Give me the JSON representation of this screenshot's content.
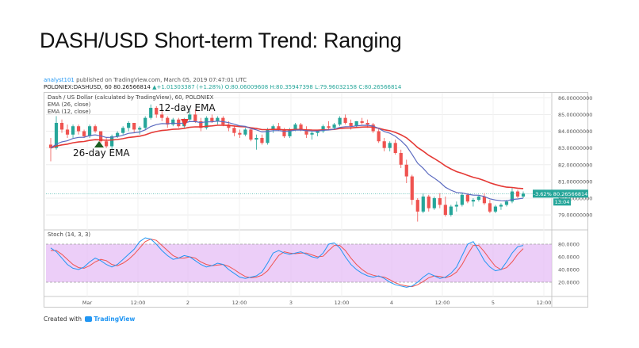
{
  "page": {
    "title": "DASH/USD Short-term Trend: Ranging"
  },
  "header": {
    "author": "analyst101",
    "published_text": "published on TradingView.com, March 05, 2019 07:47:01 UTC",
    "symbol_line_prefix": "POLONIEX:DASHUSD, 60",
    "last": "80.26566814",
    "change": "▲+1.01303387 (+1.28%)",
    "o": "O:80.06009608",
    "h": "H:80.35947398",
    "l": "L:79.96032158",
    "c": "C:80.26566814"
  },
  "annotations": {
    "ema12": "12-day EMA",
    "ema26": "26-day EMA"
  },
  "footer": {
    "created_with": "Created with",
    "brand": "TradingView"
  },
  "colors": {
    "up": "#26a69a",
    "down": "#ef5350",
    "ema26": "#e53935",
    "ema12": "#5c6bc0",
    "stoch_k": "#2196f3",
    "stoch_d": "#ef5350",
    "stoch_band": "#e6bdf5"
  },
  "chart_data": [
    {
      "type": "candlestick",
      "legend": [
        "Dash / US Dollar (calculated by TradingView), 60, POLONIEX",
        "EMA (26, close)",
        "EMA (12, close)"
      ],
      "y_ticks": [
        "80.00000000",
        "81.00000000",
        "82.00000000",
        "83.00000000",
        "84.00000000",
        "85.00000000",
        "86.00000000",
        "79.00000000"
      ],
      "y_tick_values": [
        80,
        81,
        82,
        83,
        84,
        85,
        86,
        79
      ],
      "ylim": [
        78.2,
        86.3
      ],
      "x_ticks": [
        "Mar",
        "12:00",
        "2",
        "12:00",
        "3",
        "12:00",
        "4",
        "12:00",
        "5",
        "12:00"
      ],
      "last_price_label": "80.26566814",
      "change_label": "-3.62%",
      "countdown_label": "13:04",
      "candles": [
        [
          83.2,
          83.6,
          82.2,
          83.0
        ],
        [
          83.0,
          84.9,
          82.9,
          84.5
        ],
        [
          84.5,
          84.7,
          83.9,
          84.1
        ],
        [
          84.1,
          84.4,
          83.6,
          83.8
        ],
        [
          83.8,
          84.4,
          83.6,
          84.3
        ],
        [
          84.3,
          84.4,
          83.8,
          84.0
        ],
        [
          84.0,
          84.1,
          83.6,
          83.7
        ],
        [
          83.7,
          84.4,
          83.6,
          84.3
        ],
        [
          84.3,
          84.4,
          83.9,
          84.0
        ],
        [
          84.0,
          84.0,
          83.3,
          83.4
        ],
        [
          83.4,
          83.6,
          83.0,
          83.1
        ],
        [
          83.1,
          83.8,
          82.9,
          83.7
        ],
        [
          83.7,
          84.0,
          83.6,
          83.9
        ],
        [
          83.9,
          84.3,
          83.8,
          84.2
        ],
        [
          84.2,
          84.6,
          84.0,
          84.5
        ],
        [
          84.5,
          84.5,
          83.9,
          84.1
        ],
        [
          84.1,
          84.3,
          83.8,
          84.2
        ],
        [
          84.2,
          84.9,
          84.1,
          84.8
        ],
        [
          84.8,
          85.6,
          84.7,
          85.4
        ],
        [
          85.4,
          85.5,
          84.8,
          85.0
        ],
        [
          85.0,
          85.2,
          84.6,
          84.8
        ],
        [
          84.8,
          84.9,
          84.2,
          84.4
        ],
        [
          84.4,
          84.8,
          84.3,
          84.7
        ],
        [
          84.7,
          84.8,
          84.2,
          84.3
        ],
        [
          84.3,
          84.8,
          84.2,
          84.7
        ],
        [
          84.7,
          85.2,
          84.6,
          85.0
        ],
        [
          85.0,
          85.3,
          84.5,
          84.6
        ],
        [
          84.6,
          84.8,
          84.0,
          84.2
        ],
        [
          84.2,
          84.9,
          84.1,
          84.8
        ],
        [
          84.8,
          85.0,
          84.5,
          84.6
        ],
        [
          84.6,
          84.9,
          84.4,
          84.8
        ],
        [
          84.8,
          84.9,
          84.3,
          84.4
        ],
        [
          84.4,
          84.6,
          84.0,
          84.2
        ],
        [
          84.2,
          84.3,
          83.7,
          83.9
        ],
        [
          83.9,
          84.1,
          83.6,
          83.8
        ],
        [
          83.8,
          84.2,
          83.7,
          84.1
        ],
        [
          84.1,
          84.2,
          83.4,
          83.5
        ],
        [
          83.5,
          83.8,
          82.9,
          83.6
        ],
        [
          83.6,
          83.8,
          83.2,
          83.3
        ],
        [
          83.3,
          84.2,
          83.2,
          84.1
        ],
        [
          84.1,
          84.4,
          83.9,
          84.3
        ],
        [
          84.3,
          84.5,
          84.0,
          84.1
        ],
        [
          84.1,
          84.2,
          83.6,
          83.7
        ],
        [
          83.7,
          84.2,
          83.6,
          84.1
        ],
        [
          84.1,
          84.5,
          84.0,
          84.4
        ],
        [
          84.4,
          84.5,
          84.0,
          84.1
        ],
        [
          84.1,
          84.3,
          83.6,
          83.8
        ],
        [
          83.8,
          84.0,
          83.5,
          83.9
        ],
        [
          83.9,
          84.1,
          83.7,
          84.0
        ],
        [
          84.0,
          84.4,
          83.9,
          84.3
        ],
        [
          84.3,
          84.6,
          84.1,
          84.2
        ],
        [
          84.2,
          84.5,
          84.1,
          84.4
        ],
        [
          84.4,
          84.9,
          84.3,
          84.8
        ],
        [
          84.8,
          85.0,
          84.4,
          84.5
        ],
        [
          84.5,
          84.7,
          84.1,
          84.3
        ],
        [
          84.3,
          84.6,
          84.2,
          84.6
        ],
        [
          84.6,
          84.8,
          84.4,
          84.5
        ],
        [
          84.5,
          84.7,
          84.2,
          84.4
        ],
        [
          84.4,
          84.5,
          83.9,
          84.0
        ],
        [
          84.0,
          84.2,
          83.3,
          83.4
        ],
        [
          83.4,
          83.6,
          82.8,
          83.0
        ],
        [
          83.0,
          83.4,
          82.8,
          83.3
        ],
        [
          83.3,
          83.5,
          82.6,
          82.7
        ],
        [
          82.7,
          82.9,
          81.8,
          82.0
        ],
        [
          82.0,
          82.3,
          80.9,
          81.3
        ],
        [
          81.3,
          81.4,
          79.6,
          79.9
        ],
        [
          79.9,
          80.0,
          78.6,
          79.2
        ],
        [
          79.2,
          80.3,
          79.1,
          80.1
        ],
        [
          80.1,
          80.2,
          79.2,
          79.4
        ],
        [
          79.4,
          80.1,
          79.3,
          80.0
        ],
        [
          80.0,
          80.3,
          79.4,
          79.6
        ],
        [
          79.6,
          80.1,
          78.9,
          79.0
        ],
        [
          79.0,
          79.6,
          78.9,
          79.5
        ],
        [
          79.5,
          79.8,
          79.2,
          79.6
        ],
        [
          79.6,
          80.3,
          79.5,
          80.2
        ],
        [
          80.2,
          80.3,
          79.7,
          79.8
        ],
        [
          79.8,
          80.0,
          79.5,
          79.9
        ],
        [
          79.9,
          80.2,
          79.8,
          80.1
        ],
        [
          80.1,
          80.3,
          79.6,
          79.7
        ],
        [
          79.7,
          79.9,
          79.1,
          79.2
        ],
        [
          79.2,
          79.6,
          79.1,
          79.5
        ],
        [
          79.5,
          79.7,
          79.3,
          79.6
        ],
        [
          79.6,
          79.9,
          79.5,
          79.8
        ],
        [
          79.8,
          80.6,
          79.7,
          80.4
        ],
        [
          80.4,
          80.5,
          80.0,
          80.1
        ],
        [
          80.1,
          80.4,
          80.0,
          80.27
        ]
      ],
      "stochastic": {
        "label": "Stoch (14, 3, 3)",
        "y_ticks": [
          "80.0000",
          "60.0000",
          "40.0000",
          "20.0000"
        ],
        "y_tick_values": [
          80,
          60,
          40,
          20
        ],
        "ylim": [
          0,
          100
        ],
        "band": [
          20,
          80
        ],
        "k": [
          74,
          68,
          58,
          48,
          42,
          40,
          44,
          52,
          58,
          54,
          48,
          44,
          48,
          56,
          64,
          72,
          84,
          90,
          88,
          80,
          70,
          62,
          56,
          58,
          62,
          60,
          54,
          48,
          44,
          46,
          50,
          48,
          40,
          34,
          28,
          26,
          28,
          30,
          36,
          50,
          66,
          70,
          66,
          64,
          66,
          68,
          64,
          60,
          58,
          66,
          80,
          82,
          74,
          60,
          48,
          40,
          34,
          30,
          28,
          30,
          26,
          20,
          16,
          14,
          12,
          14,
          20,
          28,
          34,
          30,
          26,
          28,
          34,
          44,
          62,
          80,
          84,
          70,
          54,
          44,
          38,
          40,
          52,
          66,
          76,
          78
        ],
        "d": [
          70,
          70,
          64,
          56,
          48,
          43,
          42,
          46,
          52,
          56,
          54,
          48,
          46,
          50,
          56,
          64,
          74,
          84,
          88,
          86,
          78,
          70,
          62,
          58,
          58,
          60,
          58,
          52,
          48,
          46,
          47,
          48,
          45,
          40,
          34,
          29,
          27,
          28,
          31,
          38,
          50,
          62,
          68,
          66,
          65,
          66,
          66,
          63,
          60,
          61,
          70,
          78,
          78,
          70,
          58,
          48,
          40,
          34,
          31,
          29,
          28,
          24,
          19,
          16,
          14,
          13,
          16,
          21,
          27,
          30,
          29,
          27,
          30,
          36,
          48,
          64,
          78,
          78,
          68,
          56,
          45,
          40,
          43,
          52,
          64,
          73
        ]
      }
    }
  ]
}
